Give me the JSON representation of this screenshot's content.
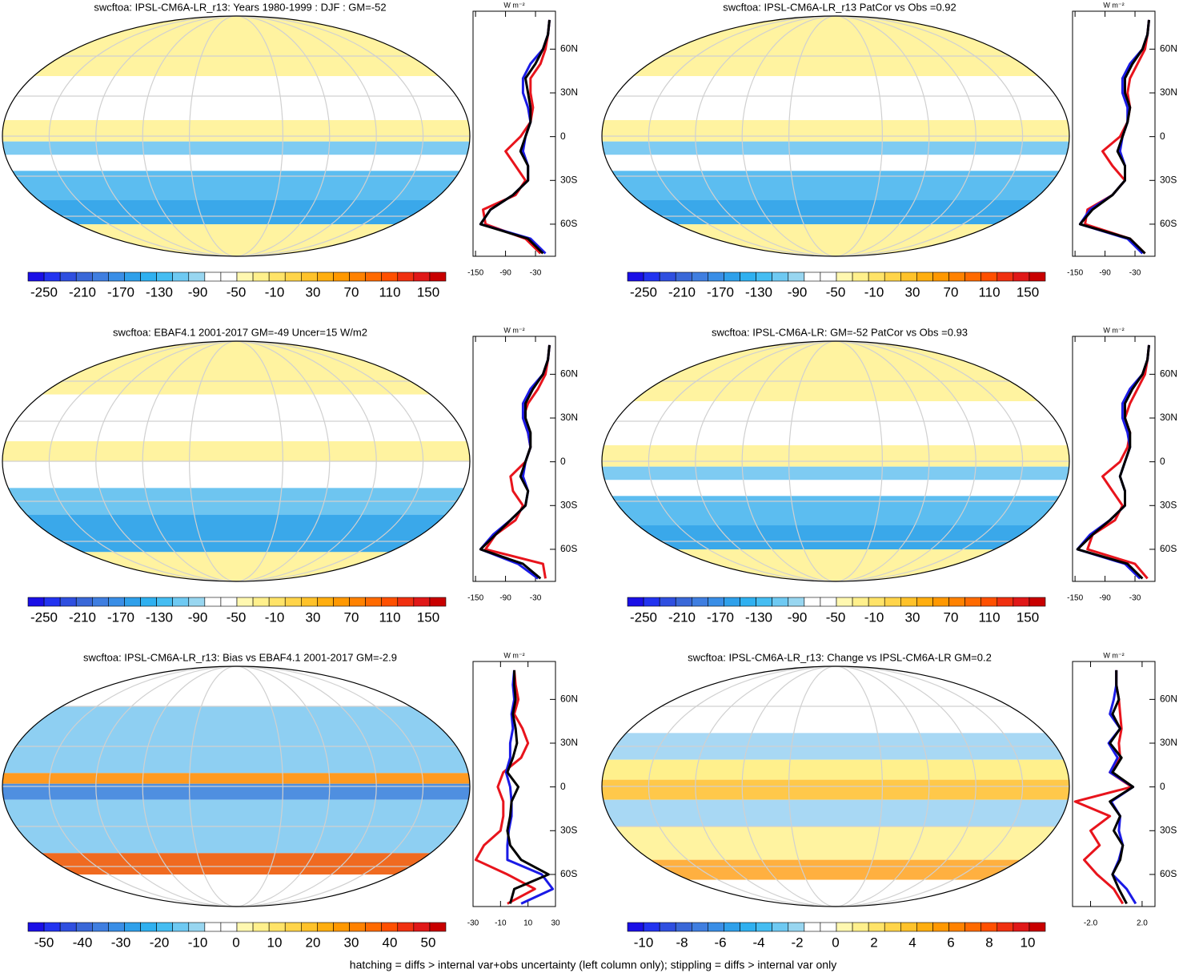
{
  "profile_axis": {
    "lat": [
      -80,
      -70,
      -60,
      -50,
      -40,
      -30,
      -20,
      -10,
      0,
      10,
      20,
      30,
      40,
      50,
      60,
      70,
      80
    ],
    "ylim": [
      -82,
      86
    ],
    "yticks": [
      {
        "value": 60,
        "label": "60N"
      },
      {
        "value": 30,
        "label": "30N"
      },
      0,
      {
        "value": -30,
        "label": "30S"
      },
      {
        "value": -60,
        "label": "60S"
      }
    ]
  },
  "colorbar_colors": [
    "#1a0fe6",
    "#2233f0",
    "#2f4fe0",
    "#3a68d8",
    "#3f7ee0",
    "#3a8ee6",
    "#2fa0ea",
    "#2fb0f0",
    "#45bdf2",
    "#6ec9f2",
    "#98d6f0",
    "#ffffff",
    "#ffffff",
    "#fff8b0",
    "#fff08c",
    "#ffe368",
    "#ffd44a",
    "#ffc22a",
    "#ffae10",
    "#ff9800",
    "#ff8200",
    "#ff6a00",
    "#ff5000",
    "#f03010",
    "#e01818",
    "#c80000"
  ],
  "panels": [
    {
      "title": "swcftoa: IPSL-CM6A-LR_r13: Years 1980-1999 : DJF : GM=-52",
      "colorbar": [
        -250,
        -210,
        -170,
        -130,
        -90,
        -50,
        -10,
        30,
        70,
        110,
        150
      ],
      "profile": {
        "type": "line",
        "xlabel": "W m⁻²",
        "xlim": [
          -155,
          10
        ],
        "xticks": [
          -150,
          -90,
          -30
        ],
        "series": [
          {
            "color": "#e8141c",
            "values": [
              -20,
              -50,
              -130,
              -135,
              -70,
              -50,
              -70,
              -90,
              -60,
              -40,
              -35,
              -40,
              -40,
              -20,
              -10,
              -5,
              -2
            ]
          },
          {
            "color": "#1a1ae6",
            "values": [
              -10,
              -40,
              -140,
              -120,
              -75,
              -45,
              -45,
              -55,
              -50,
              -40,
              -45,
              -55,
              -55,
              -40,
              -15,
              -5,
              -2
            ]
          },
          {
            "color": "#000000",
            "values": [
              -15,
              -45,
              -140,
              -120,
              -75,
              -45,
              -45,
              -60,
              -50,
              -40,
              -40,
              -45,
              -50,
              -30,
              -15,
              -5,
              -2
            ]
          }
        ]
      }
    },
    {
      "title": "swcftoa: IPSL-CM6A-LR_r13 PatCor vs Obs =0.92",
      "colorbar": [
        -250,
        -210,
        -170,
        -130,
        -90,
        -50,
        -10,
        30,
        70,
        110,
        150
      ],
      "profile": {
        "type": "line",
        "xlabel": "W m⁻²",
        "xlim": [
          -155,
          10
        ],
        "xticks": [
          -150,
          -90,
          -30
        ],
        "series": [
          {
            "color": "#e8141c",
            "values": [
              -10,
              -40,
              -130,
              -125,
              -75,
              -50,
              -75,
              -95,
              -60,
              -45,
              -40,
              -45,
              -40,
              -25,
              -10,
              -5,
              -2
            ]
          },
          {
            "color": "#1a1ae6",
            "values": [
              -15,
              -45,
              -140,
              -120,
              -75,
              -50,
              -50,
              -60,
              -55,
              -45,
              -45,
              -55,
              -55,
              -40,
              -15,
              -5,
              -2
            ]
          },
          {
            "color": "#000000",
            "values": [
              -10,
              -40,
              -140,
              -115,
              -75,
              -50,
              -50,
              -65,
              -55,
              -45,
              -40,
              -50,
              -50,
              -35,
              -15,
              -5,
              -2
            ]
          }
        ]
      }
    },
    {
      "title": "swcftoa: EBAF4.1 2001-2017 GM=-49 Uncer=15 W/m2",
      "colorbar": [
        -250,
        -210,
        -170,
        -130,
        -90,
        -50,
        -10,
        30,
        70,
        110,
        150
      ],
      "profile": {
        "type": "line",
        "xlabel": "W m⁻²",
        "xlim": [
          -155,
          10
        ],
        "xticks": [
          -150,
          -90,
          -30
        ],
        "series": [
          {
            "color": "#e8141c",
            "values": [
              -10,
              -15,
              -130,
              -110,
              -70,
              -55,
              -75,
              -80,
              -50,
              -40,
              -45,
              -55,
              -45,
              -25,
              -10,
              -5,
              -2
            ]
          },
          {
            "color": "#1a1ae6",
            "values": [
              -25,
              -65,
              -140,
              -115,
              -80,
              -50,
              -45,
              -55,
              -50,
              -40,
              -45,
              -55,
              -55,
              -40,
              -15,
              -5,
              -2
            ]
          },
          {
            "color": "#000000",
            "values": [
              -20,
              -55,
              -140,
              -110,
              -80,
              -50,
              -45,
              -60,
              -50,
              -40,
              -40,
              -50,
              -50,
              -35,
              -15,
              -5,
              -2
            ]
          }
        ]
      }
    },
    {
      "title": "swcftoa: IPSL-CM6A-LR: GM=-52 PatCor vs Obs =0.93",
      "colorbar": [
        -250,
        -210,
        -170,
        -130,
        -90,
        -50,
        -10,
        30,
        70,
        110,
        150
      ],
      "profile": {
        "type": "line",
        "xlabel": "W m⁻²",
        "xlim": [
          -155,
          10
        ],
        "xticks": [
          -150,
          -90,
          -30
        ],
        "series": [
          {
            "color": "#e8141c",
            "values": [
              -5,
              -30,
              -125,
              -115,
              -70,
              -55,
              -75,
              -95,
              -60,
              -45,
              -40,
              -50,
              -40,
              -25,
              -10,
              -5,
              -2
            ]
          },
          {
            "color": "#1a1ae6",
            "values": [
              -20,
              -50,
              -145,
              -120,
              -80,
              -50,
              -50,
              -60,
              -50,
              -40,
              -45,
              -55,
              -55,
              -40,
              -15,
              -5,
              -2
            ]
          },
          {
            "color": "#000000",
            "values": [
              -15,
              -45,
              -145,
              -115,
              -80,
              -50,
              -50,
              -60,
              -50,
              -40,
              -40,
              -50,
              -50,
              -35,
              -15,
              -5,
              -2
            ]
          }
        ]
      }
    },
    {
      "title": "swcftoa: IPSL-CM6A-LR_r13: Bias vs EBAF4.1 2001-2017 GM=-2.9",
      "colorbar": [
        -50,
        -40,
        -30,
        -20,
        -10,
        0,
        10,
        20,
        30,
        40,
        50
      ],
      "profile": {
        "type": "line",
        "xlabel": "W m⁻²",
        "xlim": [
          -30,
          30
        ],
        "xticks": [
          -30,
          -10,
          10,
          30
        ],
        "series": [
          {
            "color": "#e8141c",
            "values": [
              -5,
              15,
              -5,
              -28,
              -22,
              -10,
              -8,
              -8,
              -12,
              -8,
              5,
              10,
              6,
              0,
              3,
              1,
              0
            ]
          },
          {
            "color": "#1a1ae6",
            "values": [
              5,
              28,
              20,
              -5,
              -5,
              -4,
              -2,
              -2,
              -3,
              -6,
              -3,
              -3,
              -1,
              -2,
              0,
              -1,
              0
            ]
          },
          {
            "color": "#000000",
            "values": [
              -3,
              0,
              25,
              5,
              -3,
              -5,
              -3,
              -2,
              3,
              -5,
              -1,
              2,
              1,
              -1,
              1,
              0,
              0
            ]
          }
        ]
      }
    },
    {
      "title": "swcftoa: IPSL-CM6A-LR_r13: Change vs IPSL-CM6A-LR GM=0.2",
      "colorbar": [
        -10,
        -8,
        -6,
        -4,
        -2,
        0,
        2,
        4,
        6,
        8,
        10
      ],
      "profile": {
        "type": "line",
        "xlabel": "W m⁻²",
        "xlim": [
          -3.4,
          3
        ],
        "xticks": [
          {
            "value": -2,
            "label": "-2.0"
          },
          {
            "value": 2,
            "label": "2.0"
          }
        ],
        "series": [
          {
            "color": "#e8141c",
            "values": [
              0.5,
              -0.2,
              -1.5,
              -2.5,
              -1.3,
              -2.0,
              -0.5,
              -3.2,
              1.2,
              -0.5,
              0.3,
              0.2,
              0.4,
              0.3,
              0.2,
              0,
              0
            ]
          },
          {
            "color": "#1a1ae6",
            "values": [
              1.5,
              0.8,
              -0.3,
              0.2,
              0.5,
              0.2,
              0.3,
              -0.4,
              1.3,
              -0.5,
              0.1,
              -0.6,
              0.3,
              -0.5,
              -0.2,
              0,
              0
            ]
          },
          {
            "color": "#000000",
            "values": [
              0.8,
              0.2,
              -0.3,
              0.3,
              0.5,
              -0.2,
              0.3,
              -0.5,
              1.3,
              -0.3,
              0.4,
              -0.5,
              0.3,
              -0.3,
              0.2,
              0,
              0
            ]
          }
        ]
      }
    }
  ],
  "footnote": "hatching = diffs > internal var+obs uncertainty (left column only); stippling = diffs > internal var only"
}
